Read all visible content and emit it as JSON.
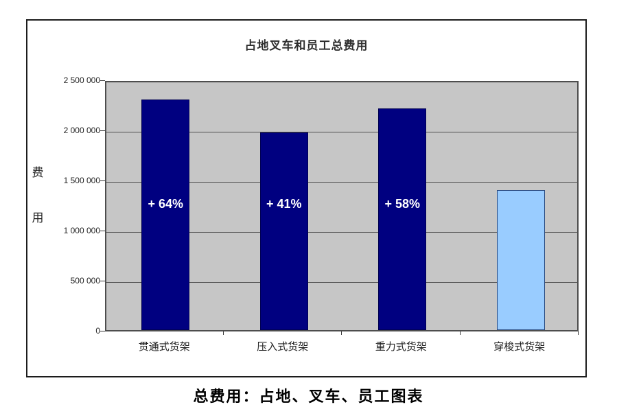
{
  "caption": "总费用：占地、叉车、员工图表",
  "colors": {
    "navy_bar": "#000080",
    "light_bar": "#99ccff",
    "navy_bar_border": "#000050",
    "light_bar_border": "#2a4a80",
    "plot_background": "#c6c6c6",
    "gridline": "#4d4d4d",
    "frame_border": "#1c1c1c",
    "bar_label_text": "#ffffff"
  },
  "chart_data": {
    "type": "bar",
    "title": "占地叉车和员工总费用",
    "xlabel": "",
    "ylabel": "费用",
    "categories": [
      "贯通式货架",
      "压入式货架",
      "重力式货架",
      "穿梭式货架"
    ],
    "values": [
      2300000,
      1975000,
      2210000,
      1400000
    ],
    "bar_labels": [
      "+ 64%",
      "+ 41%",
      "+ 58%",
      ""
    ],
    "bar_color_keys": [
      "navy_bar",
      "navy_bar",
      "navy_bar",
      "light_bar"
    ],
    "ylim": [
      0,
      2500000
    ],
    "ytick_interval": 500000,
    "ytick_labels": [
      "0",
      "500 000",
      "1 000 000",
      "1 500 000",
      "2 000 000",
      "2 500 000"
    ],
    "grid": true,
    "legend": false,
    "plot_bg": "#c6c6c6"
  }
}
